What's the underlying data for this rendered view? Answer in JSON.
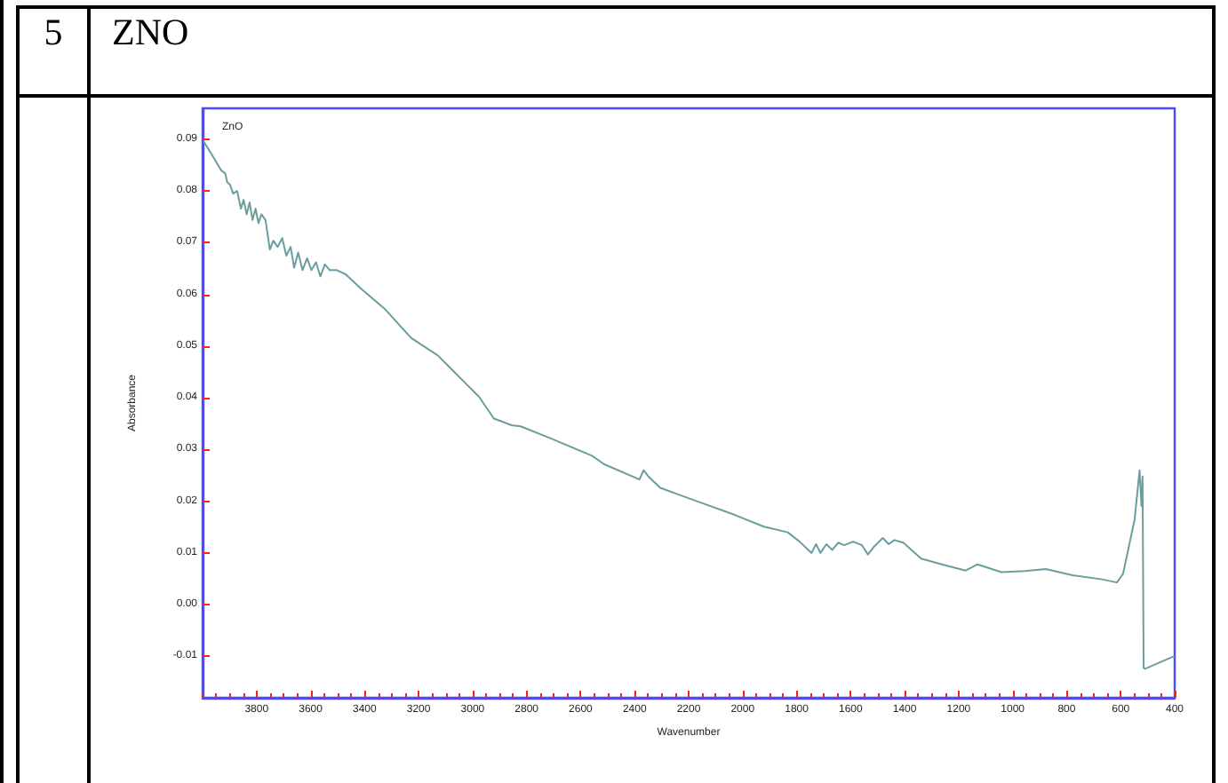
{
  "chart_data": {
    "type": "line",
    "title": "ZnO",
    "xlabel": "Wavenumber",
    "ylabel": "Absorbance",
    "annotations": [
      "5",
      "ZNO"
    ],
    "color": "#6a9e9e",
    "x": [
      3997,
      3964,
      3931,
      3916,
      3909,
      3898,
      3887,
      3872,
      3858,
      3848,
      3837,
      3826,
      3815,
      3804,
      3793,
      3782,
      3767,
      3751,
      3738,
      3722,
      3705,
      3690,
      3674,
      3661,
      3646,
      3630,
      3613,
      3597,
      3580,
      3564,
      3547,
      3529,
      3503,
      3470,
      3415,
      3327,
      3228,
      3129,
      3020,
      2976,
      2921,
      2855,
      2822,
      2712,
      2558,
      2514,
      2382,
      2367,
      2349,
      2305,
      2185,
      2031,
      1921,
      1833,
      1789,
      1745,
      1728,
      1712,
      1690,
      1668,
      1646,
      1624,
      1591,
      1558,
      1536,
      1514,
      1481,
      1459,
      1438,
      1405,
      1339,
      1262,
      1174,
      1130,
      1042,
      954,
      877,
      778,
      668,
      614,
      591,
      548,
      530,
      523,
      519,
      515,
      510,
      400
    ],
    "values": [
      0.0897,
      0.0869,
      0.084,
      0.0834,
      0.0817,
      0.0812,
      0.0795,
      0.08,
      0.0766,
      0.0783,
      0.0755,
      0.0778,
      0.0744,
      0.0766,
      0.0738,
      0.0755,
      0.0744,
      0.0687,
      0.0704,
      0.0692,
      0.0709,
      0.0675,
      0.0692,
      0.0652,
      0.0681,
      0.0647,
      0.067,
      0.0647,
      0.0662,
      0.0635,
      0.0658,
      0.0647,
      0.0647,
      0.0639,
      0.0612,
      0.0573,
      0.0516,
      0.0482,
      0.0425,
      0.0402,
      0.036,
      0.0347,
      0.0345,
      0.0322,
      0.0288,
      0.0272,
      0.0242,
      0.026,
      0.0248,
      0.0226,
      0.0203,
      0.0174,
      0.0151,
      0.014,
      0.0122,
      0.01,
      0.0117,
      0.01,
      0.0117,
      0.0106,
      0.012,
      0.0115,
      0.0122,
      0.0115,
      0.0097,
      0.0112,
      0.0129,
      0.0117,
      0.0125,
      0.012,
      0.0089,
      0.0078,
      0.0066,
      0.0078,
      0.0063,
      0.0065,
      0.0069,
      0.0057,
      0.0049,
      0.0043,
      0.006,
      0.0166,
      0.026,
      0.0191,
      0.0248,
      -0.0122,
      -0.0124,
      -0.0099
    ],
    "xlim": [
      4000,
      400
    ],
    "xticks": [
      {
        "value": 4000,
        "label": null
      },
      {
        "value": 3950,
        "label": null
      },
      {
        "value": 3900,
        "label": null
      },
      {
        "value": 3850,
        "label": null
      },
      3800,
      {
        "value": 3750,
        "label": null
      },
      {
        "value": 3700,
        "label": null
      },
      {
        "value": 3650,
        "label": null
      },
      3600,
      {
        "value": 3550,
        "label": null
      },
      {
        "value": 3500,
        "label": null
      },
      {
        "value": 3450,
        "label": null
      },
      3400,
      {
        "value": 3350,
        "label": null
      },
      {
        "value": 3300,
        "label": null
      },
      {
        "value": 3250,
        "label": null
      },
      3200,
      {
        "value": 3150,
        "label": null
      },
      {
        "value": 3100,
        "label": null
      },
      {
        "value": 3050,
        "label": null
      },
      3000,
      {
        "value": 2950,
        "label": null
      },
      {
        "value": 2900,
        "label": null
      },
      {
        "value": 2850,
        "label": null
      },
      2800,
      {
        "value": 2750,
        "label": null
      },
      {
        "value": 2700,
        "label": null
      },
      {
        "value": 2650,
        "label": null
      },
      2600,
      {
        "value": 2550,
        "label": null
      },
      {
        "value": 2500,
        "label": null
      },
      {
        "value": 2450,
        "label": null
      },
      2400,
      {
        "value": 2350,
        "label": null
      },
      {
        "value": 2300,
        "label": null
      },
      {
        "value": 2250,
        "label": null
      },
      2200,
      {
        "value": 2150,
        "label": null
      },
      {
        "value": 2100,
        "label": null
      },
      {
        "value": 2050,
        "label": null
      },
      2000,
      {
        "value": 1950,
        "label": null
      },
      {
        "value": 1900,
        "label": null
      },
      {
        "value": 1850,
        "label": null
      },
      1800,
      {
        "value": 1750,
        "label": null
      },
      {
        "value": 1700,
        "label": null
      },
      {
        "value": 1650,
        "label": null
      },
      1600,
      {
        "value": 1550,
        "label": null
      },
      {
        "value": 1500,
        "label": null
      },
      {
        "value": 1450,
        "label": null
      },
      1400,
      {
        "value": 1350,
        "label": null
      },
      {
        "value": 1300,
        "label": null
      },
      {
        "value": 1250,
        "label": null
      },
      1200,
      {
        "value": 1150,
        "label": null
      },
      {
        "value": 1100,
        "label": null
      },
      {
        "value": 1050,
        "label": null
      },
      1000,
      {
        "value": 950,
        "label": null
      },
      {
        "value": 900,
        "label": null
      },
      {
        "value": 850,
        "label": null
      },
      800,
      {
        "value": 750,
        "label": null
      },
      {
        "value": 700,
        "label": null
      },
      {
        "value": 650,
        "label": null
      },
      600,
      {
        "value": 550,
        "label": null
      },
      {
        "value": 500,
        "label": null
      },
      {
        "value": 450,
        "label": null
      },
      400
    ],
    "ylim": [
      -0.018,
      0.096
    ],
    "yticks": [
      -0.01,
      {
        "value": 0,
        "label": "0.00"
      },
      0.01,
      0.02,
      0.03,
      0.04,
      0.05,
      0.06,
      0.07,
      0.08,
      0.09
    ]
  }
}
